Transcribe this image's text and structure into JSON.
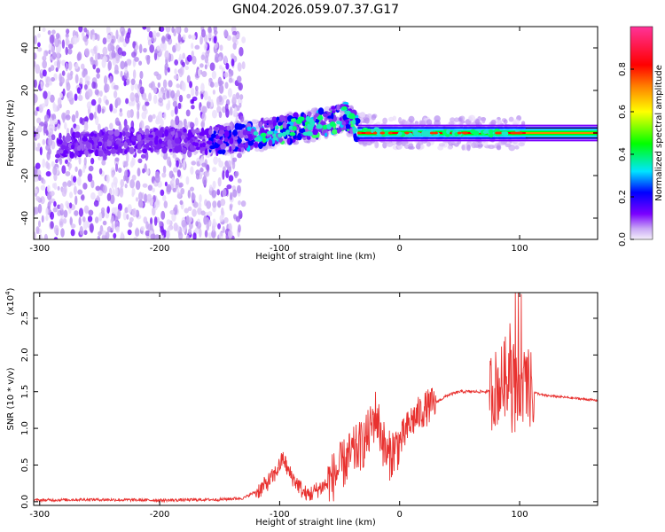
{
  "chart_data": [
    {
      "type": "heatmap",
      "title": "GN04.2026.059.07.37.G17",
      "xlabel": "Height of straight line (km)",
      "ylabel": "Frequency (Hz)",
      "xlim": [
        -305,
        165
      ],
      "ylim": [
        -50,
        50
      ],
      "x_ticks": [
        -300,
        -200,
        -100,
        0,
        100
      ],
      "y_ticks": [
        -40,
        -20,
        0,
        20,
        40
      ],
      "grid": false,
      "colorbar": {
        "label": "Normalized spectral amplitude",
        "range": [
          0,
          1
        ],
        "ticks": [
          0.0,
          0.2,
          0.4,
          0.6,
          0.8
        ],
        "colors": [
          "#f4effa",
          "#7a00ff",
          "#0000ff",
          "#00e5ff",
          "#00ff00",
          "#ffff00",
          "#ff7f00",
          "#ff0000",
          "#ff3399"
        ]
      },
      "ridge": {
        "x": [
          -280,
          -250,
          -200,
          -160,
          -130,
          -100,
          -80,
          -60,
          -45,
          -35,
          -20,
          0,
          50,
          100,
          165
        ],
        "y": [
          -6,
          -5,
          -3,
          -4,
          -2,
          1,
          3,
          5,
          8,
          2,
          1,
          0,
          0,
          0,
          0
        ]
      }
    },
    {
      "type": "line",
      "title": "",
      "xlabel": "Height of straight line (km)",
      "ylabel": "SNR (10 * v/v)",
      "y_multiplier": "(x10^4)",
      "xlim": [
        -305,
        165
      ],
      "ylim": [
        -0.05,
        2.85
      ],
      "x_ticks": [
        -300,
        -200,
        -100,
        0,
        100
      ],
      "y_ticks": [
        0.0,
        0.5,
        1.0,
        1.5,
        2.0,
        2.5
      ],
      "grid": false,
      "series": [
        {
          "color": "#e8312f",
          "x": [
            -305,
            -260,
            -200,
            -150,
            -130,
            -115,
            -105,
            -100,
            -97,
            -93,
            -88,
            -84,
            -80,
            -75,
            -70,
            -60,
            -50,
            -40,
            -30,
            -25,
            -20,
            -15,
            -12,
            -10,
            -5,
            0,
            5,
            10,
            20,
            30,
            40,
            50,
            60,
            70,
            75,
            80,
            85,
            90,
            95,
            100,
            105,
            110,
            120,
            140,
            165
          ],
          "y": [
            0.02,
            0.03,
            0.02,
            0.03,
            0.05,
            0.18,
            0.35,
            0.5,
            0.6,
            0.42,
            0.3,
            0.22,
            0.12,
            0.1,
            0.15,
            0.25,
            0.45,
            0.65,
            0.8,
            0.95,
            1.2,
            0.9,
            0.7,
            0.6,
            0.7,
            0.8,
            0.95,
            1.1,
            1.25,
            1.35,
            1.45,
            1.5,
            1.5,
            1.5,
            1.5,
            1.55,
            1.6,
            1.75,
            1.7,
            1.6,
            1.55,
            1.5,
            1.45,
            1.42,
            1.38
          ]
        }
      ]
    }
  ]
}
